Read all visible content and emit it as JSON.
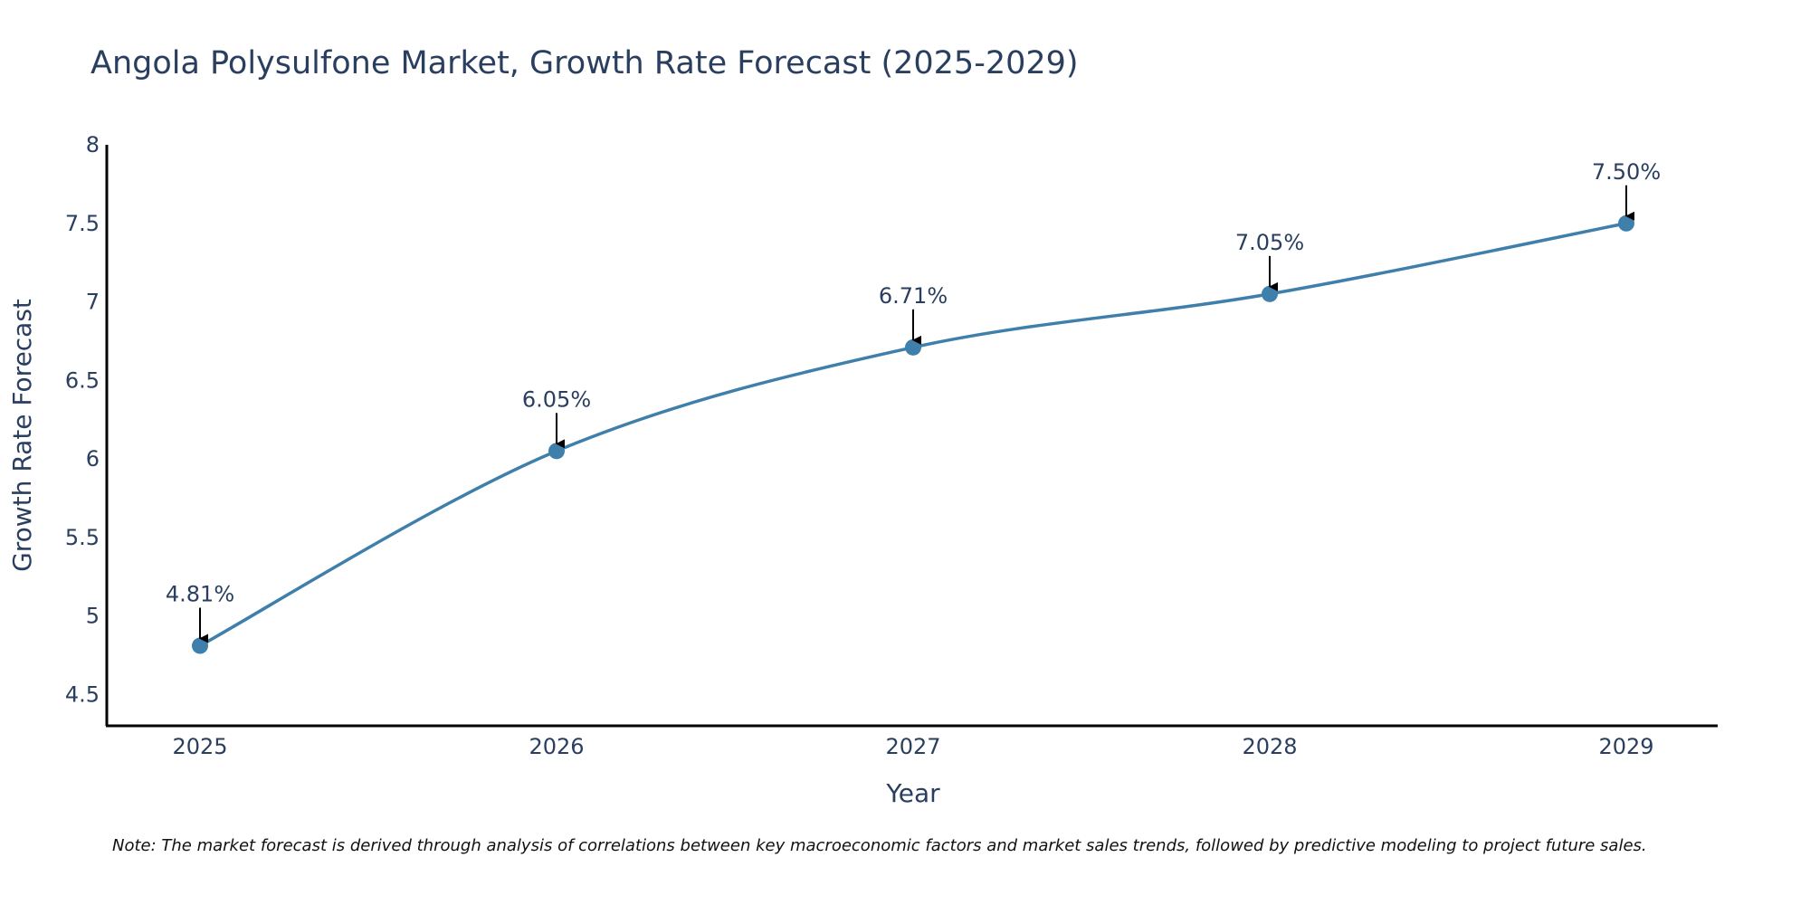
{
  "colors": {
    "line": "#3f7fab",
    "marker": "#3f7fab",
    "arrow": "#000000",
    "axis": "#000000",
    "text": "#2a3f5f"
  },
  "chart_data": {
    "type": "line",
    "title": "Angola Polysulfone Market, Growth Rate Forecast (2025-2029)",
    "xlabel": "Year",
    "ylabel": "Growth Rate Forecast",
    "categories": [
      "2025",
      "2026",
      "2027",
      "2028",
      "2029"
    ],
    "series": [
      {
        "name": "Growth Rate Forecast",
        "values": [
          4.81,
          6.05,
          6.71,
          7.05,
          7.5
        ]
      }
    ],
    "data_labels": [
      "4.81%",
      "6.05%",
      "6.71%",
      "7.05%",
      "7.50%"
    ],
    "y_ticks": [
      4.5,
      5,
      5.5,
      6,
      6.5,
      7,
      7.5,
      8
    ],
    "y_tick_labels": [
      "4.5",
      "5",
      "5.5",
      "6",
      "6.5",
      "7",
      "7.5",
      "8"
    ],
    "ylim": [
      4.3,
      8
    ],
    "grid": false,
    "legend": "none",
    "line_shape": "spline",
    "note": "Note: The market forecast is derived through analysis of correlations between key macroeconomic factors and market sales trends, followed by predictive modeling to project future sales."
  }
}
